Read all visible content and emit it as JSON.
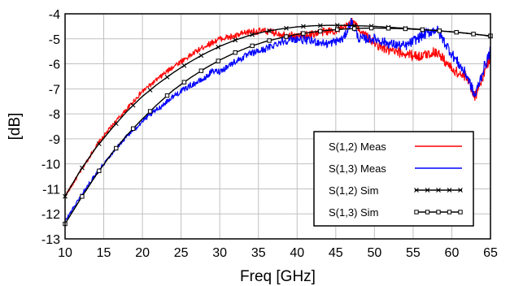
{
  "chart_data": {
    "type": "line",
    "title": "",
    "xlabel": "Freq [GHz]",
    "ylabel": "[dB]",
    "xlim": [
      10,
      65
    ],
    "ylim": [
      -13,
      -4
    ],
    "x_ticks": [
      "10",
      "15",
      "20",
      "25",
      "30",
      "35",
      "40",
      "45",
      "50",
      "55",
      "60",
      "65"
    ],
    "y_ticks": [
      "-4",
      "-5",
      "-6",
      "-7",
      "-8",
      "-9",
      "-10",
      "-11",
      "-12",
      "-13"
    ],
    "grid": true,
    "legend_position": "bottom-right",
    "series": [
      {
        "name": "S(1,2) Meas",
        "color": "#ff0000",
        "style": "noisy",
        "x": [
          10,
          12,
          14,
          16,
          18,
          20,
          22,
          24,
          26,
          28,
          30,
          32,
          34,
          36,
          38,
          40,
          42,
          44,
          46,
          47,
          48,
          50,
          52,
          54,
          56,
          58,
          60,
          62,
          63,
          64,
          65
        ],
        "y": [
          -11.3,
          -10.3,
          -9.3,
          -8.5,
          -7.8,
          -7.1,
          -6.6,
          -6.1,
          -5.7,
          -5.3,
          -5.0,
          -4.9,
          -4.7,
          -4.7,
          -4.8,
          -4.9,
          -4.8,
          -4.7,
          -4.6,
          -4.3,
          -4.6,
          -5.2,
          -5.5,
          -5.6,
          -5.7,
          -5.5,
          -6.2,
          -6.6,
          -7.3,
          -6.5,
          -5.7
        ]
      },
      {
        "name": "S(1,3) Meas",
        "color": "#0000ff",
        "style": "noisy",
        "x": [
          10,
          12,
          14,
          16,
          18,
          20,
          22,
          24,
          26,
          28,
          29,
          30,
          32,
          34,
          36,
          38,
          40,
          42,
          44,
          46,
          47,
          48,
          50,
          52,
          54,
          56,
          58,
          60,
          62,
          63,
          64,
          65
        ],
        "y": [
          -12.3,
          -11.3,
          -10.4,
          -9.6,
          -8.9,
          -8.3,
          -7.8,
          -7.3,
          -6.9,
          -6.6,
          -6.3,
          -6.3,
          -5.9,
          -5.6,
          -5.4,
          -5.1,
          -5.0,
          -5.1,
          -5.2,
          -5.0,
          -4.3,
          -5.0,
          -5.0,
          -5.2,
          -5.3,
          -4.9,
          -4.6,
          -5.6,
          -6.5,
          -7.3,
          -6.3,
          -5.5
        ]
      },
      {
        "name": "S(1,2) Sim",
        "color": "#000000",
        "marker": "x",
        "style": "smooth",
        "x": [
          10,
          12,
          14,
          16,
          18,
          20,
          22,
          24,
          26,
          28,
          30,
          32,
          34,
          36,
          38,
          40,
          42,
          44,
          46,
          48,
          50,
          52,
          54,
          56,
          58,
          60,
          62,
          64,
          65
        ],
        "y": [
          -11.3,
          -10.25,
          -9.35,
          -8.6,
          -7.9,
          -7.3,
          -6.8,
          -6.35,
          -5.95,
          -5.6,
          -5.3,
          -5.05,
          -4.85,
          -4.7,
          -4.6,
          -4.52,
          -4.48,
          -4.46,
          -4.46,
          -4.48,
          -4.5,
          -4.54,
          -4.58,
          -4.62,
          -4.67,
          -4.72,
          -4.78,
          -4.85,
          -4.9
        ]
      },
      {
        "name": "S(1,3) Sim",
        "color": "#000000",
        "marker": "square",
        "style": "smooth",
        "x": [
          10,
          12,
          14,
          16,
          18,
          20,
          22,
          24,
          26,
          28,
          30,
          32,
          34,
          36,
          38,
          40,
          42,
          44,
          46,
          48,
          50,
          52,
          54,
          56,
          58,
          60,
          62,
          64,
          65
        ],
        "y": [
          -12.4,
          -11.4,
          -10.45,
          -9.6,
          -8.85,
          -8.2,
          -7.6,
          -7.05,
          -6.6,
          -6.2,
          -5.85,
          -5.55,
          -5.3,
          -5.1,
          -4.95,
          -4.82,
          -4.73,
          -4.66,
          -4.61,
          -4.58,
          -4.57,
          -4.58,
          -4.6,
          -4.63,
          -4.67,
          -4.72,
          -4.78,
          -4.85,
          -4.88
        ]
      }
    ]
  }
}
